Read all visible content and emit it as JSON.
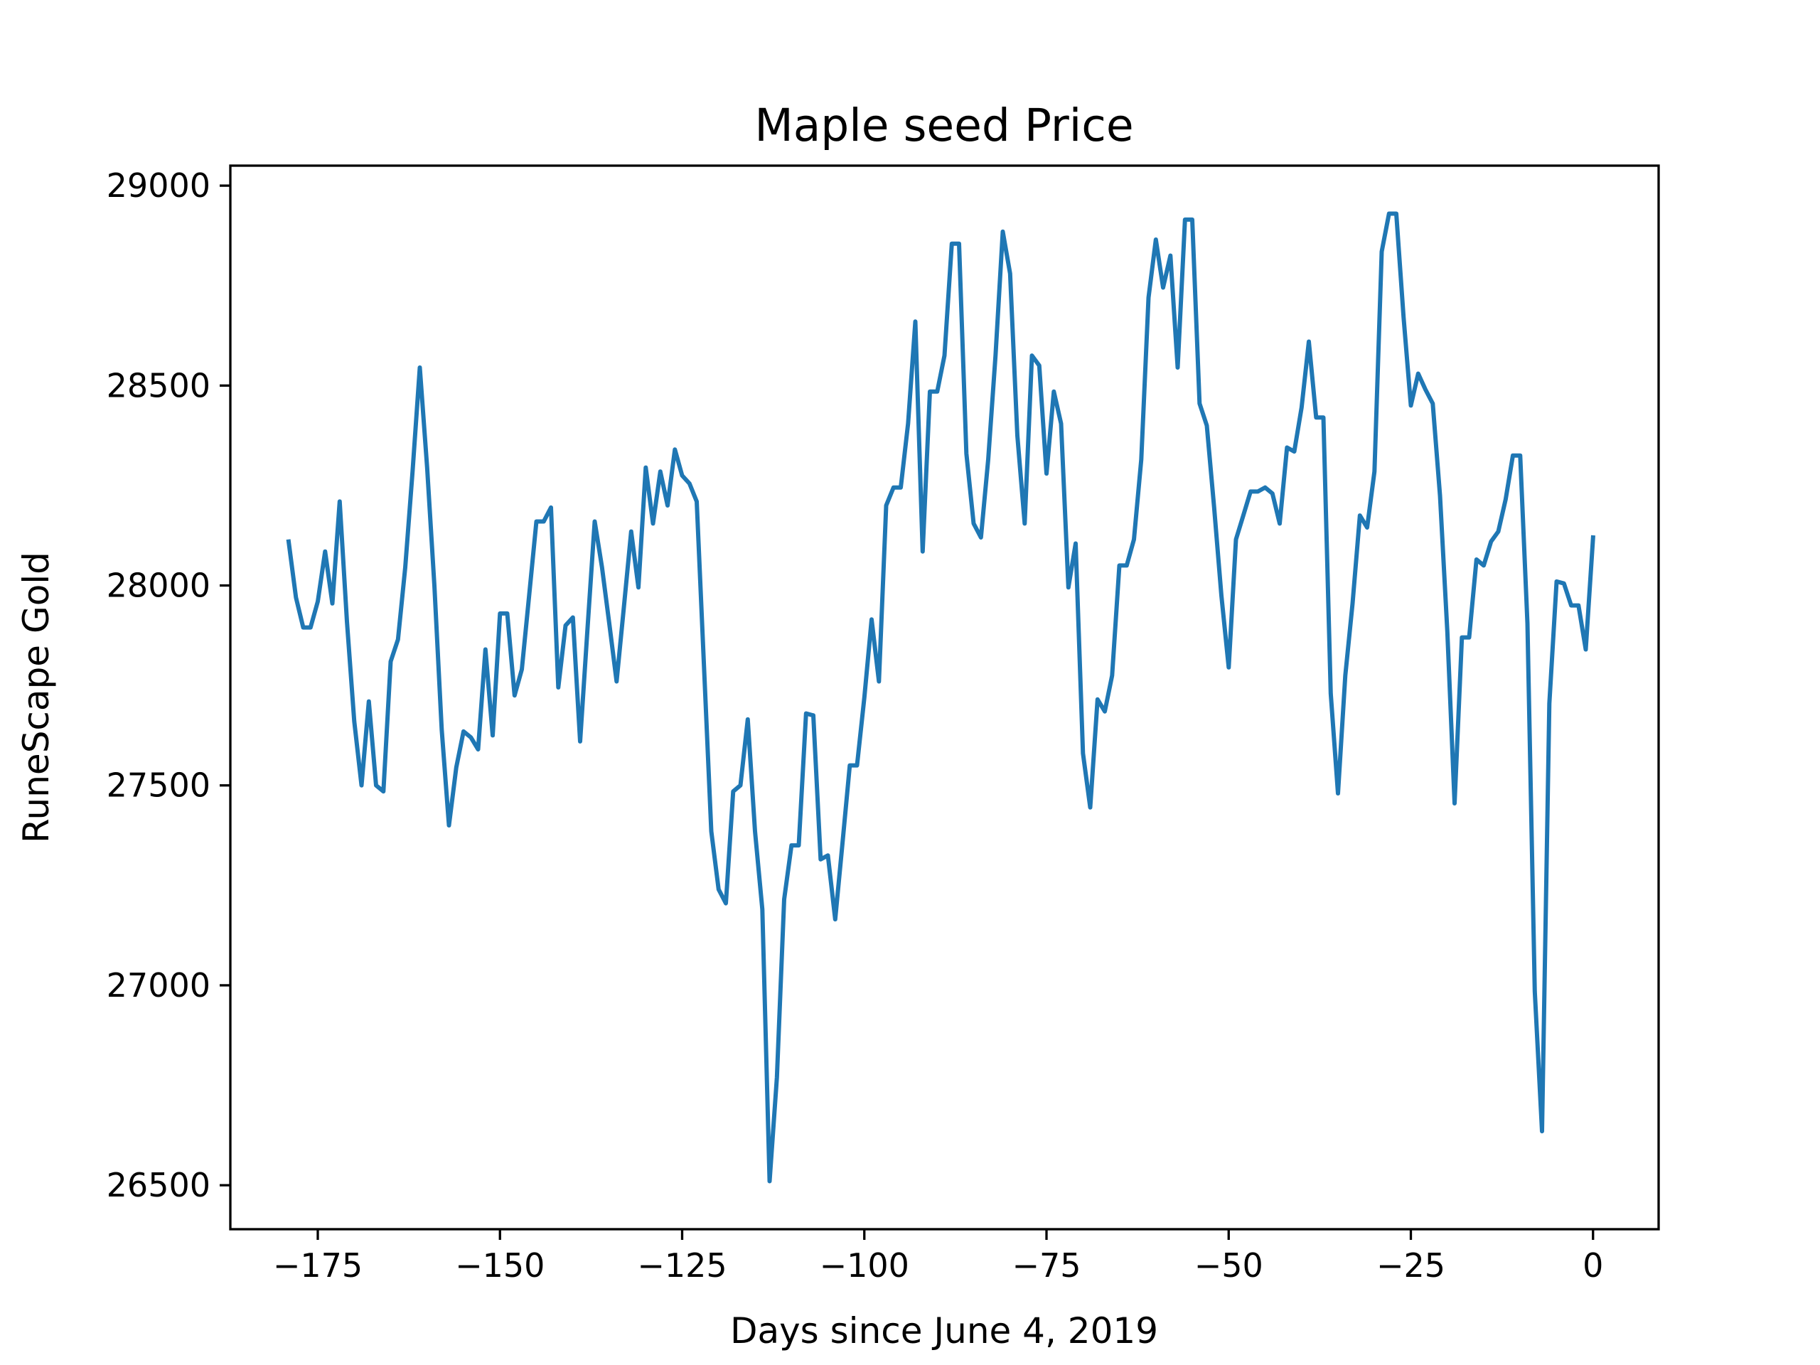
{
  "chart_data": {
    "type": "line",
    "title": "Maple seed Price",
    "xlabel": "Days since June 4, 2019",
    "ylabel": "RuneScape Gold",
    "xlim": [
      -187,
      9
    ],
    "ylim": [
      26390,
      29050
    ],
    "xticks": [
      -175,
      -150,
      -125,
      -100,
      -75,
      -50,
      -25,
      0
    ],
    "xtick_labels": [
      "−175",
      "−150",
      "−125",
      "−100",
      "−75",
      "−50",
      "−25",
      "0"
    ],
    "yticks": [
      26500,
      27000,
      27500,
      28000,
      28500,
      29000
    ],
    "ytick_labels": [
      "26500",
      "27000",
      "27500",
      "28000",
      "28500",
      "29000"
    ],
    "grid": false,
    "legend": "none",
    "series": [
      {
        "color": "#1f77b4",
        "x": [
          -179,
          -178,
          -177,
          -176,
          -175,
          -174,
          -173,
          -172,
          -171,
          -170,
          -169,
          -168,
          -167,
          -166,
          -165,
          -164,
          -163,
          -162,
          -161,
          -160,
          -159,
          -158,
          -157,
          -156,
          -155,
          -154,
          -153,
          -152,
          -151,
          -150,
          -149,
          -148,
          -147,
          -146,
          -145,
          -144,
          -143,
          -142,
          -141,
          -140,
          -139,
          -138,
          -137,
          -136,
          -135,
          -134,
          -133,
          -132,
          -131,
          -130,
          -129,
          -128,
          -127,
          -126,
          -125,
          -124,
          -123,
          -122,
          -121,
          -120,
          -119,
          -118,
          -117,
          -116,
          -115,
          -114,
          -113,
          -112,
          -111,
          -110,
          -109,
          -108,
          -107,
          -106,
          -105,
          -104,
          -103,
          -102,
          -101,
          -100,
          -99,
          -98,
          -97,
          -96,
          -95,
          -94,
          -93,
          -92,
          -91,
          -90,
          -89,
          -88,
          -87,
          -86,
          -85,
          -84,
          -83,
          -82,
          -81,
          -80,
          -79,
          -78,
          -77,
          -76,
          -75,
          -74,
          -73,
          -72,
          -71,
          -70,
          -69,
          -68,
          -67,
          -66,
          -65,
          -64,
          -63,
          -62,
          -61,
          -60,
          -59,
          -58,
          -57,
          -56,
          -55,
          -54,
          -53,
          -52,
          -51,
          -50,
          -49,
          -48,
          -47,
          -46,
          -45,
          -44,
          -43,
          -42,
          -41,
          -40,
          -39,
          -38,
          -37,
          -36,
          -35,
          -34,
          -33,
          -32,
          -31,
          -30,
          -29,
          -28,
          -27,
          -26,
          -25,
          -24,
          -23,
          -22,
          -21,
          -20,
          -19,
          -18,
          -17,
          -16,
          -15,
          -14,
          -13,
          -12,
          -11,
          -10,
          -9,
          -8,
          -7,
          -6,
          -5,
          -4,
          -3,
          -2,
          -1,
          0
        ],
        "y": [
          28110,
          27970,
          27895,
          27895,
          27960,
          28085,
          27955,
          28210,
          27910,
          27660,
          27500,
          27710,
          27500,
          27485,
          27810,
          27865,
          28045,
          28285,
          28545,
          28295,
          28000,
          27640,
          27400,
          27545,
          27635,
          27620,
          27590,
          27840,
          27625,
          27930,
          27930,
          27725,
          27790,
          27975,
          28160,
          28160,
          28195,
          27745,
          27900,
          27920,
          27610,
          27890,
          28160,
          28045,
          27905,
          27760,
          27945,
          28135,
          27995,
          28295,
          28155,
          28285,
          28200,
          28340,
          28275,
          28255,
          28210,
          27795,
          27385,
          27240,
          27205,
          27485,
          27500,
          27665,
          27385,
          27190,
          26510,
          26770,
          27215,
          27350,
          27350,
          27680,
          27675,
          27315,
          27325,
          27165,
          27355,
          27550,
          27550,
          27720,
          27915,
          27760,
          28200,
          28245,
          28245,
          28405,
          28660,
          28085,
          28485,
          28485,
          28575,
          28855,
          28855,
          28330,
          28155,
          28120,
          28315,
          28575,
          28885,
          28780,
          28375,
          28155,
          28575,
          28550,
          28280,
          28485,
          28405,
          27995,
          28105,
          27580,
          27445,
          27715,
          27685,
          27775,
          28050,
          28050,
          28115,
          28315,
          28720,
          28865,
          28745,
          28825,
          28545,
          28915,
          28915,
          28455,
          28400,
          28195,
          27975,
          27795,
          28115,
          28175,
          28235,
          28235,
          28245,
          28230,
          28155,
          28345,
          28335,
          28445,
          28610,
          28420,
          28420,
          27730,
          27480,
          27775,
          27955,
          28175,
          28145,
          28285,
          28835,
          28930,
          28930,
          28670,
          28450,
          28530,
          28490,
          28455,
          28225,
          27885,
          27455,
          27870,
          27870,
          28065,
          28050,
          28110,
          28135,
          28215,
          28325,
          28325,
          27905,
          26985,
          26635,
          27705,
          28010,
          28005,
          27950,
          27950,
          27840,
          28120
        ]
      }
    ]
  }
}
